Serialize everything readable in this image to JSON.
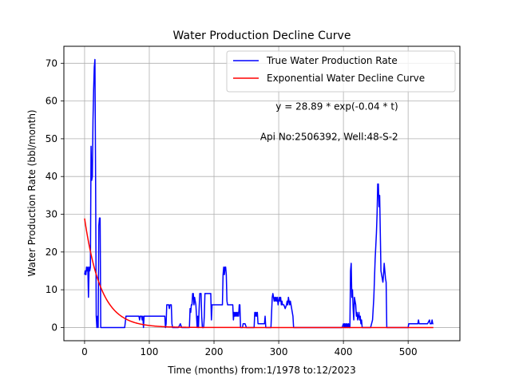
{
  "chart_data": {
    "type": "line",
    "title": "Water Production Decline Curve",
    "xlabel": "Time (months) from:1/1978 to:12/2023",
    "ylabel": "Water Production Rate (bbl/month)",
    "xlim": [
      -32,
      580
    ],
    "ylim": [
      -3.5,
      74.5
    ],
    "xticks": [
      0,
      100,
      200,
      300,
      400,
      500
    ],
    "yticks": [
      0,
      10,
      20,
      30,
      40,
      50,
      60,
      70
    ],
    "grid": true,
    "legend_position": "top-right",
    "annotations": [
      {
        "text": "y = 28.89 * exp(-0.04 * t)",
        "x": 390,
        "y": 58.5
      },
      {
        "text": "Api No:2506392, Well:48-S-2",
        "x": 378,
        "y": 50.5
      }
    ],
    "series": [
      {
        "name": "True Water Production Rate",
        "color": "#0000ff",
        "style": "line",
        "points": [
          [
            0,
            14
          ],
          [
            1,
            15
          ],
          [
            2,
            14
          ],
          [
            3,
            16
          ],
          [
            4,
            15
          ],
          [
            5,
            16
          ],
          [
            6,
            8
          ],
          [
            7,
            16
          ],
          [
            8,
            15
          ],
          [
            9,
            16
          ],
          [
            10,
            48
          ],
          [
            11,
            39
          ],
          [
            12,
            40
          ],
          [
            13,
            55
          ],
          [
            14,
            63
          ],
          [
            15,
            69
          ],
          [
            16,
            71
          ],
          [
            17,
            40
          ],
          [
            18,
            3
          ],
          [
            19,
            0
          ],
          [
            20,
            3
          ],
          [
            21,
            0
          ],
          [
            22,
            27
          ],
          [
            23,
            29
          ],
          [
            24,
            29
          ],
          [
            25,
            0
          ],
          [
            30,
            0
          ],
          [
            40,
            0
          ],
          [
            50,
            0
          ],
          [
            62,
            0
          ],
          [
            64,
            3
          ],
          [
            70,
            3
          ],
          [
            80,
            3
          ],
          [
            84,
            3
          ],
          [
            85,
            2
          ],
          [
            86,
            3
          ],
          [
            88,
            3
          ],
          [
            89,
            2
          ],
          [
            90,
            3
          ],
          [
            91,
            0
          ],
          [
            92,
            3
          ],
          [
            100,
            3
          ],
          [
            110,
            3
          ],
          [
            120,
            3
          ],
          [
            124,
            3
          ],
          [
            125,
            0
          ],
          [
            126,
            1
          ],
          [
            127,
            6
          ],
          [
            130,
            6
          ],
          [
            131,
            5
          ],
          [
            132,
            6
          ],
          [
            134,
            6
          ],
          [
            135,
            1
          ],
          [
            136,
            0
          ],
          [
            140,
            0
          ],
          [
            145,
            0
          ],
          [
            148,
            1
          ],
          [
            150,
            0
          ],
          [
            155,
            0
          ],
          [
            160,
            0
          ],
          [
            162,
            0
          ],
          [
            163,
            5
          ],
          [
            164,
            4
          ],
          [
            165,
            6
          ],
          [
            166,
            6
          ],
          [
            167,
            9
          ],
          [
            168,
            9
          ],
          [
            169,
            6
          ],
          [
            170,
            8
          ],
          [
            171,
            7
          ],
          [
            172,
            6
          ],
          [
            173,
            3
          ],
          [
            174,
            0
          ],
          [
            175,
            3
          ],
          [
            176,
            0
          ],
          [
            177,
            5
          ],
          [
            178,
            9
          ],
          [
            179,
            9
          ],
          [
            180,
            9
          ],
          [
            181,
            3
          ],
          [
            182,
            0
          ],
          [
            184,
            0
          ],
          [
            185,
            3
          ],
          [
            186,
            9
          ],
          [
            190,
            9
          ],
          [
            195,
            9
          ],
          [
            196,
            2
          ],
          [
            197,
            6
          ],
          [
            200,
            6
          ],
          [
            205,
            6
          ],
          [
            210,
            6
          ],
          [
            213,
            6
          ],
          [
            214,
            14
          ],
          [
            215,
            16
          ],
          [
            216,
            14
          ],
          [
            217,
            16
          ],
          [
            218,
            16
          ],
          [
            219,
            14
          ],
          [
            220,
            7
          ],
          [
            221,
            6
          ],
          [
            225,
            6
          ],
          [
            229,
            6
          ],
          [
            230,
            2
          ],
          [
            231,
            4
          ],
          [
            232,
            3
          ],
          [
            233,
            4
          ],
          [
            234,
            3
          ],
          [
            235,
            4
          ],
          [
            236,
            3
          ],
          [
            237,
            4
          ],
          [
            238,
            3
          ],
          [
            239,
            6
          ],
          [
            240,
            6
          ],
          [
            241,
            0
          ],
          [
            244,
            0
          ],
          [
            245,
            1
          ],
          [
            248,
            1
          ],
          [
            250,
            0
          ],
          [
            255,
            0
          ],
          [
            260,
            0
          ],
          [
            262,
            0
          ],
          [
            263,
            4
          ],
          [
            264,
            3
          ],
          [
            265,
            4
          ],
          [
            266,
            3
          ],
          [
            267,
            4
          ],
          [
            268,
            1
          ],
          [
            270,
            1
          ],
          [
            275,
            1
          ],
          [
            278,
            1
          ],
          [
            279,
            3
          ],
          [
            280,
            0
          ],
          [
            285,
            0
          ],
          [
            288,
            0
          ],
          [
            290,
            8
          ],
          [
            291,
            9
          ],
          [
            292,
            8
          ],
          [
            293,
            7
          ],
          [
            294,
            8
          ],
          [
            295,
            7
          ],
          [
            296,
            8
          ],
          [
            297,
            7
          ],
          [
            298,
            8
          ],
          [
            299,
            6
          ],
          [
            300,
            7
          ],
          [
            301,
            8
          ],
          [
            302,
            7
          ],
          [
            303,
            8
          ],
          [
            304,
            6
          ],
          [
            305,
            7
          ],
          [
            306,
            6
          ],
          [
            308,
            6
          ],
          [
            310,
            5
          ],
          [
            312,
            6
          ],
          [
            313,
            7
          ],
          [
            314,
            6
          ],
          [
            315,
            8
          ],
          [
            316,
            7
          ],
          [
            317,
            6
          ],
          [
            318,
            7
          ],
          [
            319,
            6
          ],
          [
            320,
            5
          ],
          [
            321,
            4
          ],
          [
            322,
            3
          ],
          [
            323,
            0
          ],
          [
            330,
            0
          ],
          [
            340,
            0
          ],
          [
            350,
            0
          ],
          [
            360,
            0
          ],
          [
            370,
            0
          ],
          [
            380,
            0
          ],
          [
            390,
            0
          ],
          [
            398,
            0
          ],
          [
            400,
            1
          ],
          [
            401,
            0
          ],
          [
            402,
            1
          ],
          [
            403,
            0
          ],
          [
            404,
            1
          ],
          [
            405,
            0
          ],
          [
            406,
            1
          ],
          [
            407,
            0
          ],
          [
            408,
            1
          ],
          [
            409,
            0
          ],
          [
            410,
            0
          ],
          [
            411,
            15
          ],
          [
            412,
            17
          ],
          [
            413,
            8
          ],
          [
            414,
            10
          ],
          [
            415,
            5
          ],
          [
            416,
            2
          ],
          [
            417,
            8
          ],
          [
            418,
            7
          ],
          [
            419,
            6
          ],
          [
            420,
            3
          ],
          [
            421,
            4
          ],
          [
            422,
            2
          ],
          [
            423,
            3
          ],
          [
            424,
            4
          ],
          [
            425,
            2
          ],
          [
            426,
            3
          ],
          [
            427,
            1
          ],
          [
            428,
            2
          ],
          [
            429,
            0
          ],
          [
            435,
            0
          ],
          [
            442,
            0
          ],
          [
            445,
            2
          ],
          [
            447,
            8
          ],
          [
            449,
            18
          ],
          [
            451,
            25
          ],
          [
            452,
            30
          ],
          [
            453,
            38
          ],
          [
            454,
            38
          ],
          [
            455,
            32
          ],
          [
            456,
            35
          ],
          [
            457,
            25
          ],
          [
            458,
            15
          ],
          [
            459,
            14
          ],
          [
            460,
            13
          ],
          [
            461,
            12
          ],
          [
            462,
            14
          ],
          [
            463,
            17
          ],
          [
            464,
            15
          ],
          [
            465,
            13
          ],
          [
            466,
            12
          ],
          [
            467,
            0
          ],
          [
            475,
            0
          ],
          [
            485,
            0
          ],
          [
            490,
            0
          ],
          [
            495,
            0
          ],
          [
            500,
            0
          ],
          [
            501,
            1
          ],
          [
            505,
            1
          ],
          [
            510,
            1
          ],
          [
            515,
            1
          ],
          [
            516,
            2
          ],
          [
            517,
            1
          ],
          [
            520,
            1
          ],
          [
            525,
            1
          ],
          [
            530,
            1
          ],
          [
            533,
            2
          ],
          [
            534,
            1
          ],
          [
            536,
            1
          ],
          [
            537,
            2
          ],
          [
            538,
            1
          ],
          [
            539,
            1
          ]
        ]
      },
      {
        "name": "Exponential Water Decline Curve",
        "color": "#ff0000",
        "style": "exponential",
        "a": 28.89,
        "b": 0.04,
        "x_range": [
          0,
          539
        ]
      }
    ]
  }
}
